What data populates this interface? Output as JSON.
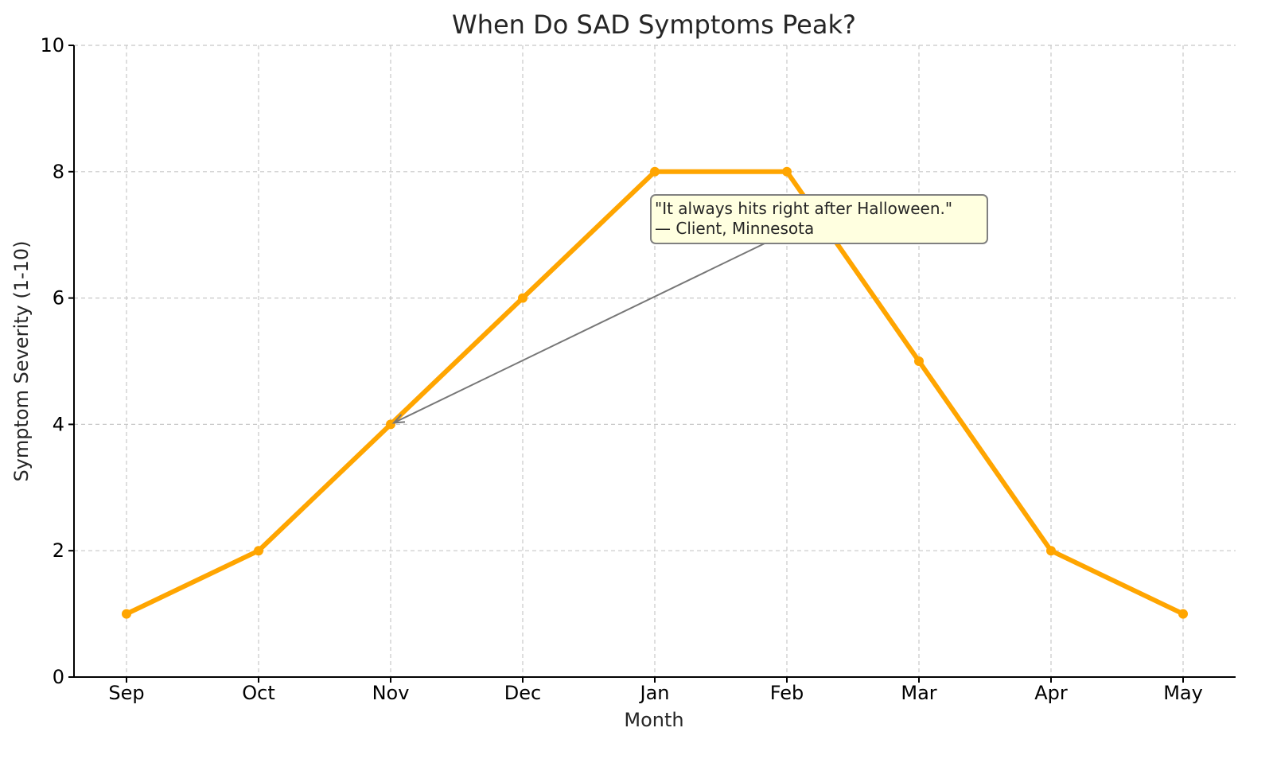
{
  "chart_data": {
    "type": "line",
    "title": "When Do SAD Symptoms Peak?",
    "xlabel": "Month",
    "ylabel": "Symptom Severity (1-10)",
    "categories": [
      "Sep",
      "Oct",
      "Nov",
      "Dec",
      "Jan",
      "Feb",
      "Mar",
      "Apr",
      "May"
    ],
    "series": [
      {
        "values": [
          1,
          2,
          4,
          6,
          8,
          8,
          5,
          2,
          1
        ],
        "color": "#FFA500"
      }
    ],
    "ylim": [
      0,
      10
    ],
    "yticks": [
      0,
      2,
      4,
      6,
      8,
      10
    ],
    "grid": true,
    "legend": "none",
    "annotation": {
      "lines": [
        "\"It always hits right after Halloween.\"",
        "— Client, Minnesota"
      ],
      "target_category": "Nov",
      "target_value": 4,
      "box_fill": "#FFFFE0",
      "box_border": "#808080"
    }
  }
}
